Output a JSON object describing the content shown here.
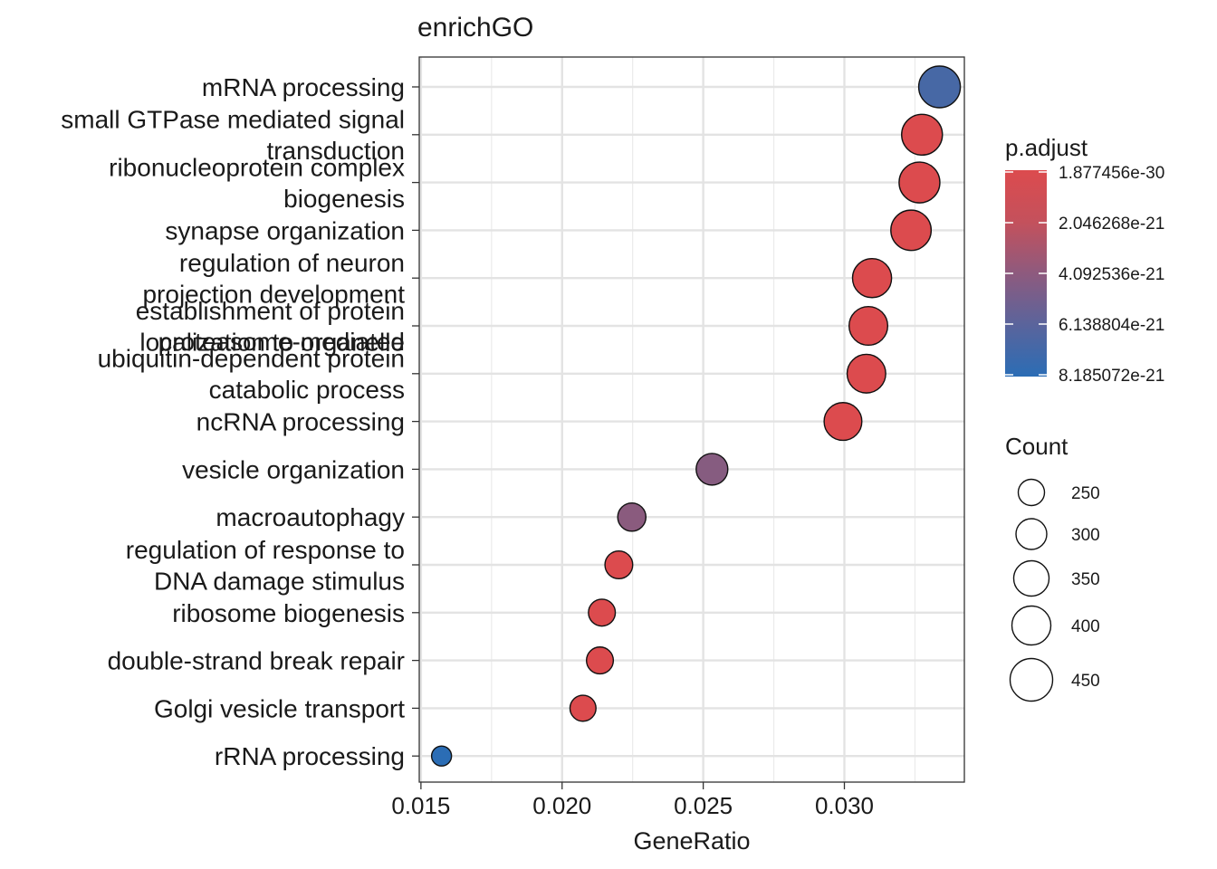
{
  "chart_data": {
    "type": "scatter",
    "title": "enrichGO",
    "xlabel": "GeneRatio",
    "ylabel": "",
    "xlim": [
      0.01494,
      0.03425
    ],
    "x_ticks": [
      "0.015",
      "0.020",
      "0.025",
      "0.030"
    ],
    "x_tick_values": [
      0.015,
      0.02,
      0.025,
      0.03
    ],
    "grid": true,
    "terms": [
      {
        "label_lines": [
          "mRNA processing"
        ],
        "x": 0.03337,
        "count": 470,
        "p_adjust": 6.9e-21
      },
      {
        "label_lines": [
          "small GTPase mediated signal",
          "transduction"
        ],
        "x": 0.03275,
        "count": 460,
        "p_adjust": 1e-26
      },
      {
        "label_lines": [
          "ribonucleoprotein complex",
          "biogenesis"
        ],
        "x": 0.03266,
        "count": 460,
        "p_adjust": 1e-26
      },
      {
        "label_lines": [
          "synapse organization"
        ],
        "x": 0.03236,
        "count": 455,
        "p_adjust": 1e-26
      },
      {
        "label_lines": [
          "regulation of neuron",
          "projection development"
        ],
        "x": 0.03098,
        "count": 440,
        "p_adjust": 1e-26
      },
      {
        "label_lines": [
          "establishment of protein",
          "localization to organelle"
        ],
        "x": 0.03085,
        "count": 435,
        "p_adjust": 1e-26
      },
      {
        "label_lines": [
          "proteasome-mediated",
          ""
        ],
        "x": 0.03085,
        "count": 435,
        "p_adjust": 1e-26
      },
      {
        "label_lines": [
          "ubiquitin-dependent protein",
          "catabolic process"
        ],
        "x": 0.03078,
        "count": 435,
        "p_adjust": 1e-26
      },
      {
        "label_lines": [
          "ncRNA processing"
        ],
        "x": 0.02995,
        "count": 425,
        "p_adjust": 1e-26
      },
      {
        "label_lines": [
          "vesicle organization"
        ],
        "x": 0.02531,
        "count": 355,
        "p_adjust": 4e-21
      },
      {
        "label_lines": [
          "macroautophagy"
        ],
        "x": 0.02247,
        "count": 315,
        "p_adjust": 3.8e-21
      },
      {
        "label_lines": [
          "regulation of response to",
          "DNA damage stimulus"
        ],
        "x": 0.02201,
        "count": 310,
        "p_adjust": 1e-26
      },
      {
        "label_lines": [
          "ribosome biogenesis"
        ],
        "x": 0.02141,
        "count": 300,
        "p_adjust": 1e-26
      },
      {
        "label_lines": [
          "double-strand break repair"
        ],
        "x": 0.02134,
        "count": 300,
        "p_adjust": 1e-26
      },
      {
        "label_lines": [
          "Golgi vesicle transport"
        ],
        "x": 0.02074,
        "count": 290,
        "p_adjust": 1e-26
      },
      {
        "label_lines": [
          "rRNA processing"
        ],
        "x": 0.01573,
        "count": 220,
        "p_adjust": 8.185072e-21
      }
    ],
    "row_order": [
      0,
      1,
      2,
      3,
      4,
      5,
      7,
      8,
      9,
      10,
      11,
      12,
      13,
      14,
      15
    ],
    "overlay_label": "proteasome-mediated",
    "legend": {
      "placement": "right",
      "color_title": "p.adjust",
      "color_low": "#DC4B4E",
      "color_high": "#2B6DB5",
      "color_ticks": [
        "1.877456e-30",
        "2.046268e-21",
        "4.092536e-21",
        "6.138804e-21",
        "8.185072e-21"
      ],
      "color_tick_values": [
        1.877456e-30,
        2.046268e-21,
        4.092536e-21,
        6.138804e-21,
        8.185072e-21
      ],
      "size_title": "Count",
      "size_ticks": [
        "250",
        "300",
        "350",
        "400",
        "450"
      ],
      "size_tick_values": [
        250,
        300,
        350,
        400,
        450
      ]
    }
  }
}
